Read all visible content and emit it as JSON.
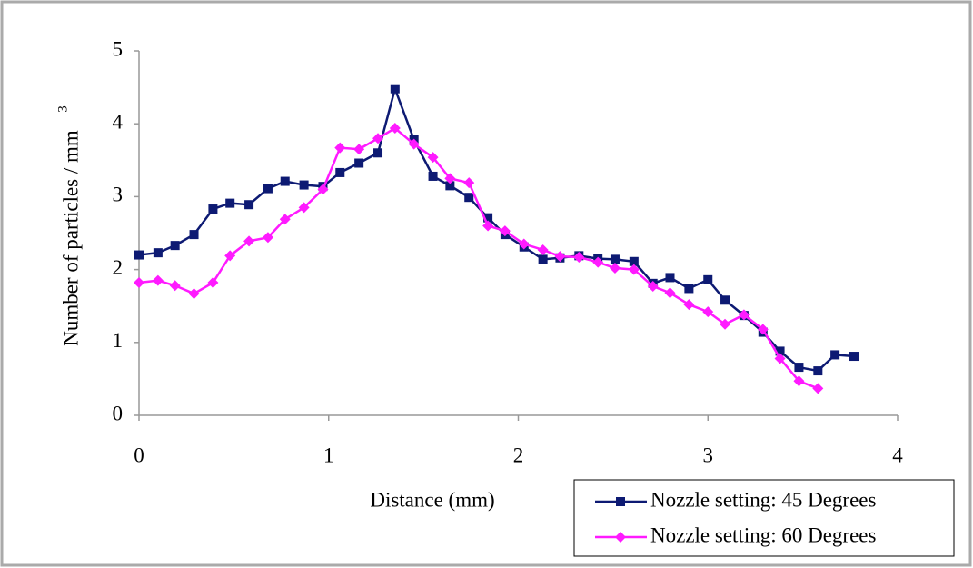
{
  "chart_data": {
    "type": "line",
    "x_label": "Distance (mm)",
    "y_label": "Number of particles / mm",
    "y_label_superscript": "3",
    "xlim": [
      0,
      4
    ],
    "xticks": [
      0,
      1,
      2,
      3,
      4
    ],
    "ylim": [
      0,
      5
    ],
    "yticks": [
      0,
      1,
      2,
      3,
      4,
      5
    ],
    "legend": "bottom-right",
    "series": [
      {
        "name": "Nozzle setting: 45 Degrees",
        "color": "#0d1a73",
        "marker": "square",
        "x": [
          0,
          0.1,
          0.19,
          0.29,
          0.39,
          0.48,
          0.58,
          0.68,
          0.77,
          0.87,
          0.97,
          1.06,
          1.16,
          1.26,
          1.35,
          1.45,
          1.55,
          1.64,
          1.74,
          1.84,
          1.93,
          2.03,
          2.13,
          2.22,
          2.32,
          2.42,
          2.51,
          2.61,
          2.71,
          2.8,
          2.9,
          3,
          3.09,
          3.19,
          3.29,
          3.38,
          3.48,
          3.58,
          3.67,
          3.77
        ],
        "values": [
          2.2,
          2.23,
          2.33,
          2.48,
          2.83,
          2.91,
          2.89,
          3.11,
          3.21,
          3.16,
          3.14,
          3.33,
          3.46,
          3.6,
          4.48,
          3.78,
          3.28,
          3.15,
          2.99,
          2.71,
          2.48,
          2.31,
          2.14,
          2.16,
          2.19,
          2.15,
          2.14,
          2.11,
          1.81,
          1.89,
          1.74,
          1.86,
          1.58,
          1.37,
          1.14,
          0.88,
          0.66,
          0.61,
          0.83,
          0.81
        ]
      },
      {
        "name": "Nozzle setting: 60 Degrees",
        "color": "#ff1aff",
        "marker": "diamond",
        "x": [
          0,
          0.1,
          0.19,
          0.29,
          0.39,
          0.48,
          0.58,
          0.68,
          0.77,
          0.87,
          0.97,
          1.06,
          1.16,
          1.26,
          1.35,
          1.45,
          1.55,
          1.64,
          1.74,
          1.84,
          1.93,
          2.03,
          2.13,
          2.22,
          2.32,
          2.42,
          2.51,
          2.61,
          2.71,
          2.8,
          2.9,
          3,
          3.09,
          3.19,
          3.29,
          3.38,
          3.48,
          3.58
        ],
        "values": [
          1.82,
          1.85,
          1.78,
          1.67,
          1.82,
          2.19,
          2.39,
          2.44,
          2.69,
          2.85,
          3.1,
          3.67,
          3.65,
          3.8,
          3.94,
          3.72,
          3.54,
          3.25,
          3.19,
          2.6,
          2.53,
          2.35,
          2.27,
          2.18,
          2.17,
          2.1,
          2.02,
          2.0,
          1.77,
          1.68,
          1.52,
          1.42,
          1.25,
          1.38,
          1.18,
          0.78,
          0.47,
          0.37
        ]
      }
    ]
  }
}
